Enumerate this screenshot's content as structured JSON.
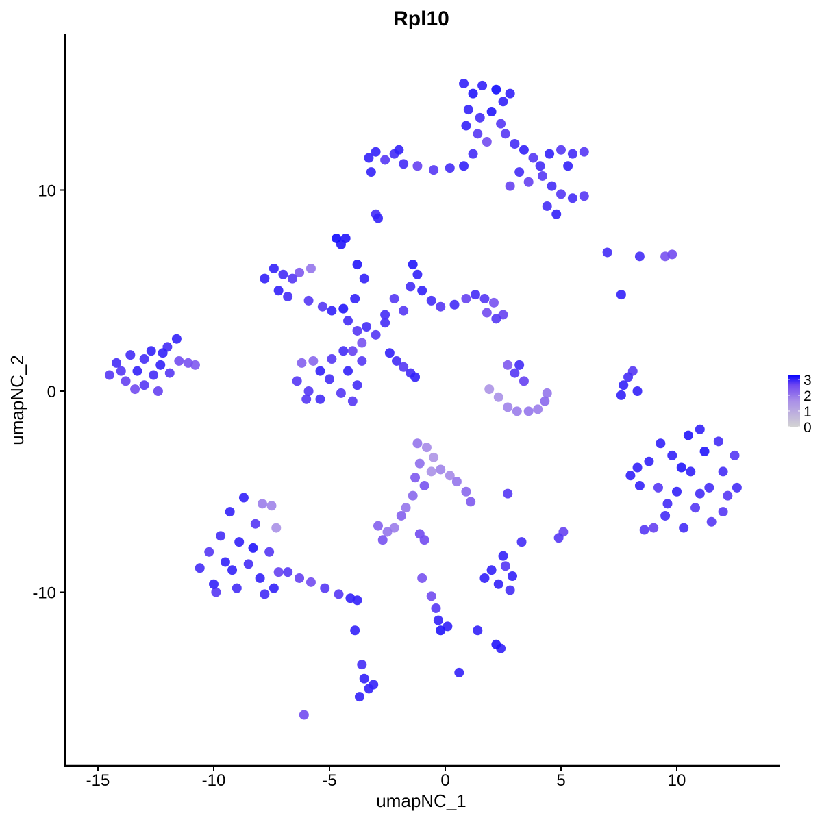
{
  "chart_data": {
    "type": "scatter",
    "title": "Rpl10",
    "xlabel": "umapNC_1",
    "ylabel": "umapNC_2",
    "xlim": [
      -16.4,
      14.4
    ],
    "ylim": [
      -18.6,
      17.8
    ],
    "x_ticks": [
      -15,
      -10,
      -5,
      0,
      5,
      10
    ],
    "y_ticks": [
      -10,
      0,
      10
    ],
    "grid": false,
    "color_scale": {
      "low": "#d3d3d3",
      "high": "#0000ff",
      "min": 0,
      "max": 3.3,
      "ticks": [
        3,
        2,
        1,
        0
      ]
    },
    "legend_position": "right",
    "points_format": [
      "x",
      "y",
      "expression"
    ],
    "points": [
      [
        -14.5,
        0.8,
        2.8
      ],
      [
        -14.2,
        1.4,
        2.9
      ],
      [
        -13.8,
        0.5,
        2.7
      ],
      [
        -13.6,
        1.8,
        2.9
      ],
      [
        -13.3,
        1.0,
        3
      ],
      [
        -13.0,
        0.3,
        2.8
      ],
      [
        -13.0,
        1.6,
        2.9
      ],
      [
        -12.7,
        2.0,
        3
      ],
      [
        -12.6,
        0.8,
        2.9
      ],
      [
        -12.4,
        0.0,
        2.7
      ],
      [
        -12.3,
        1.3,
        3
      ],
      [
        -12.0,
        2.2,
        2.9
      ],
      [
        -11.9,
        0.9,
        2.8
      ],
      [
        -11.6,
        2.6,
        3
      ],
      [
        -11.5,
        1.5,
        2.6
      ],
      [
        -11.1,
        1.4,
        2.5
      ],
      [
        -10.8,
        1.3,
        2.4
      ],
      [
        -14.0,
        1.0,
        2.8
      ],
      [
        -13.4,
        0.1,
        2.6
      ],
      [
        -12.2,
        1.9,
        3
      ],
      [
        -3.3,
        11.6,
        3
      ],
      [
        -3.0,
        11.9,
        3
      ],
      [
        -2.6,
        11.5,
        2.8
      ],
      [
        -2.2,
        11.8,
        2.9
      ],
      [
        -1.8,
        11.3,
        2.9
      ],
      [
        -1.2,
        11.2,
        2.7
      ],
      [
        -0.5,
        11.0,
        2.8
      ],
      [
        0.2,
        11.1,
        2.9
      ],
      [
        0.8,
        11.2,
        3
      ],
      [
        -3.2,
        10.9,
        3
      ],
      [
        -2.0,
        12.0,
        3
      ],
      [
        0.8,
        15.3,
        3
      ],
      [
        1.2,
        14.8,
        3.1
      ],
      [
        1.6,
        15.2,
        3
      ],
      [
        2.2,
        15.0,
        3.2
      ],
      [
        2.5,
        14.4,
        3
      ],
      [
        1.0,
        14.0,
        3
      ],
      [
        1.5,
        13.6,
        2.9
      ],
      [
        2.0,
        13.9,
        3.1
      ],
      [
        2.4,
        13.3,
        2.8
      ],
      [
        0.9,
        13.2,
        3
      ],
      [
        1.4,
        12.8,
        2.8
      ],
      [
        2.8,
        14.8,
        3
      ],
      [
        1.8,
        12.4,
        2.6
      ],
      [
        1.2,
        11.8,
        2.9
      ],
      [
        2.6,
        12.8,
        2.8
      ],
      [
        3.0,
        12.3,
        2.9
      ],
      [
        3.4,
        12.0,
        3
      ],
      [
        3.8,
        11.6,
        2.8
      ],
      [
        4.1,
        11.2,
        2.9
      ],
      [
        4.5,
        11.8,
        3
      ],
      [
        5.0,
        12.0,
        2.8
      ],
      [
        5.5,
        11.8,
        2.9
      ],
      [
        6.0,
        11.9,
        2.8
      ],
      [
        5.3,
        11.2,
        3
      ],
      [
        4.2,
        10.7,
        2.8
      ],
      [
        4.6,
        10.2,
        2.9
      ],
      [
        5.0,
        9.8,
        2.8
      ],
      [
        5.5,
        9.6,
        2.9
      ],
      [
        6.0,
        9.7,
        2.8
      ],
      [
        4.8,
        8.8,
        3
      ],
      [
        4.4,
        9.2,
        2.9
      ],
      [
        3.6,
        10.4,
        2.7
      ],
      [
        2.8,
        10.2,
        2.7
      ],
      [
        3.2,
        10.9,
        2.9
      ],
      [
        -3.0,
        8.8,
        2.9
      ],
      [
        -2.9,
        8.6,
        3
      ],
      [
        -7.8,
        5.6,
        3
      ],
      [
        -7.4,
        6.1,
        3
      ],
      [
        -7.0,
        5.8,
        2.9
      ],
      [
        -6.6,
        5.6,
        2.8
      ],
      [
        -7.2,
        5.0,
        3
      ],
      [
        -6.8,
        4.7,
        2.9
      ],
      [
        -6.3,
        5.9,
        2.4
      ],
      [
        -5.8,
        6.1,
        2
      ],
      [
        -5.9,
        4.5,
        2.8
      ],
      [
        -5.3,
        4.2,
        2.8
      ],
      [
        -4.9,
        4.0,
        3
      ],
      [
        -4.4,
        4.1,
        3.1
      ],
      [
        -4.2,
        3.5,
        2.9
      ],
      [
        -3.8,
        3.0,
        2.8
      ],
      [
        -3.4,
        3.2,
        2.9
      ],
      [
        -3.0,
        2.8,
        2.8
      ],
      [
        -3.6,
        2.4,
        2.5
      ],
      [
        -4.0,
        2.0,
        2.7
      ],
      [
        -2.6,
        3.4,
        2.9
      ],
      [
        -3.9,
        4.6,
        3
      ],
      [
        -3.5,
        5.6,
        3
      ],
      [
        -3.8,
        6.3,
        3.1
      ],
      [
        -4.7,
        7.6,
        3.2
      ],
      [
        -4.5,
        7.3,
        3.1
      ],
      [
        -4.3,
        7.6,
        3.1
      ],
      [
        -6.4,
        0.5,
        2.8
      ],
      [
        -6.2,
        1.4,
        2.3
      ],
      [
        -5.7,
        1.5,
        2.2
      ],
      [
        -5.9,
        0.0,
        2.8
      ],
      [
        -5.4,
        -0.4,
        2.9
      ],
      [
        -5.0,
        0.6,
        2.9
      ],
      [
        -4.9,
        1.6,
        2.8
      ],
      [
        -4.5,
        -0.1,
        2.8
      ],
      [
        -4.2,
        1.0,
        3
      ],
      [
        -4.4,
        2.0,
        2.9
      ],
      [
        -3.8,
        0.3,
        2.9
      ],
      [
        -3.6,
        1.5,
        2.8
      ],
      [
        -4.0,
        -0.5,
        2.8
      ],
      [
        -5.4,
        1.0,
        3
      ],
      [
        -6.0,
        -0.4,
        2.8
      ],
      [
        -2.4,
        1.9,
        3
      ],
      [
        -2.1,
        1.5,
        2.9
      ],
      [
        -1.8,
        1.2,
        2.8
      ],
      [
        -1.5,
        0.9,
        2.9
      ],
      [
        -1.3,
        0.7,
        3
      ],
      [
        -1.4,
        6.3,
        3.1
      ],
      [
        -1.2,
        5.8,
        3
      ],
      [
        -1.5,
        5.2,
        2.9
      ],
      [
        -1.0,
        5.0,
        3
      ],
      [
        -0.6,
        4.5,
        2.9
      ],
      [
        -1.8,
        4.0,
        2.8
      ],
      [
        -0.2,
        4.2,
        2.8
      ],
      [
        0.4,
        4.3,
        2.9
      ],
      [
        0.9,
        4.6,
        2.7
      ],
      [
        1.3,
        4.8,
        2.9
      ],
      [
        1.7,
        4.6,
        2.8
      ],
      [
        2.1,
        4.4,
        2.5
      ],
      [
        2.5,
        3.8,
        2.7
      ],
      [
        2.2,
        3.6,
        2.8
      ],
      [
        1.8,
        3.9,
        2.6
      ],
      [
        -2.2,
        4.6,
        2.8
      ],
      [
        -2.6,
        3.8,
        2.9
      ],
      [
        1.9,
        0.1,
        1.5
      ],
      [
        2.3,
        -0.3,
        1.6
      ],
      [
        2.7,
        -0.8,
        1.8
      ],
      [
        3.1,
        -1.0,
        1.9
      ],
      [
        3.6,
        -1.0,
        2.0
      ],
      [
        4.0,
        -0.9,
        1.9
      ],
      [
        4.3,
        -0.5,
        2.2
      ],
      [
        4.4,
        -0.1,
        2.0
      ],
      [
        3.0,
        0.9,
        2.8
      ],
      [
        3.2,
        1.3,
        2.9
      ],
      [
        2.7,
        1.3,
        2.4
      ],
      [
        3.4,
        0.5,
        2.7
      ],
      [
        7.6,
        -0.2,
        3
      ],
      [
        7.7,
        0.3,
        3
      ],
      [
        7.9,
        0.7,
        2.9
      ],
      [
        8.1,
        1.0,
        2.8
      ],
      [
        8.3,
        0.0,
        3
      ],
      [
        8.0,
        -4.2,
        3
      ],
      [
        8.4,
        -4.7,
        3
      ],
      [
        8.8,
        -3.5,
        3
      ],
      [
        9.2,
        -4.8,
        2.8
      ],
      [
        9.5,
        -6.2,
        2.9
      ],
      [
        9.0,
        -6.8,
        2.7
      ],
      [
        9.8,
        -3.2,
        3
      ],
      [
        10.0,
        -5.0,
        3
      ],
      [
        10.3,
        -6.8,
        2.9
      ],
      [
        10.5,
        -2.2,
        3.1
      ],
      [
        10.6,
        -4.0,
        3
      ],
      [
        10.8,
        -5.8,
        2.8
      ],
      [
        11.0,
        -1.9,
        3
      ],
      [
        11.2,
        -3.0,
        3.1
      ],
      [
        11.4,
        -4.8,
        2.9
      ],
      [
        11.5,
        -6.5,
        2.8
      ],
      [
        11.8,
        -2.5,
        2.9
      ],
      [
        12.0,
        -4.0,
        2.9
      ],
      [
        12.2,
        -5.2,
        2.8
      ],
      [
        12.5,
        -3.2,
        2.8
      ],
      [
        12.6,
        -4.8,
        2.9
      ],
      [
        9.3,
        -2.6,
        3
      ],
      [
        10.2,
        -3.8,
        3.1
      ],
      [
        9.6,
        -5.6,
        2.9
      ],
      [
        11.0,
        -5.1,
        2.9
      ],
      [
        8.6,
        -6.9,
        2.8
      ],
      [
        12.0,
        -6.0,
        2.8
      ],
      [
        8.3,
        -3.8,
        3
      ],
      [
        -10.6,
        -8.8,
        2.9
      ],
      [
        -10.2,
        -8.0,
        2.8
      ],
      [
        -10.0,
        -9.6,
        3
      ],
      [
        -9.7,
        -7.2,
        2.9
      ],
      [
        -9.5,
        -8.5,
        3
      ],
      [
        -9.3,
        -6.0,
        3
      ],
      [
        -9.0,
        -9.8,
        2.9
      ],
      [
        -8.9,
        -7.5,
        3
      ],
      [
        -8.7,
        -5.3,
        3
      ],
      [
        -8.5,
        -8.6,
        2.9
      ],
      [
        -8.2,
        -6.6,
        2.8
      ],
      [
        -8.0,
        -9.3,
        3
      ],
      [
        -7.8,
        -10.1,
        2.9
      ],
      [
        -7.6,
        -8.0,
        2.8
      ],
      [
        -7.9,
        -5.6,
        1.9
      ],
      [
        -7.5,
        -5.7,
        1.8
      ],
      [
        -7.3,
        -6.8,
        1.6
      ],
      [
        -7.2,
        -9.0,
        2.7
      ],
      [
        -7.4,
        -9.8,
        3
      ],
      [
        -9.9,
        -10.0,
        2.8
      ],
      [
        -8.3,
        -7.8,
        3.1
      ],
      [
        -9.2,
        -8.9,
        3
      ],
      [
        -6.8,
        -9.0,
        2.8
      ],
      [
        -6.3,
        -9.3,
        2.7
      ],
      [
        -5.8,
        -9.5,
        2.6
      ],
      [
        -5.2,
        -9.8,
        2.8
      ],
      [
        -4.6,
        -10.1,
        2.8
      ],
      [
        -4.1,
        -10.3,
        3
      ],
      [
        -3.8,
        -10.4,
        3
      ],
      [
        -1.2,
        -2.6,
        2.0
      ],
      [
        -0.8,
        -2.8,
        1.7
      ],
      [
        -0.5,
        -3.3,
        1.5
      ],
      [
        -1.1,
        -3.6,
        2.1
      ],
      [
        -0.6,
        -4.0,
        1.6
      ],
      [
        -1.3,
        -4.3,
        2.4
      ],
      [
        -0.2,
        -3.9,
        1.8
      ],
      [
        0.2,
        -4.2,
        1.7
      ],
      [
        0.5,
        -4.5,
        2.0
      ],
      [
        -0.9,
        -4.7,
        2.5
      ],
      [
        0.9,
        -5.0,
        2.2
      ],
      [
        1.1,
        -5.5,
        2.4
      ],
      [
        -1.4,
        -5.2,
        2.2
      ],
      [
        -1.7,
        -5.8,
        2.0
      ],
      [
        -1.9,
        -6.2,
        2.3
      ],
      [
        -2.9,
        -6.7,
        2.3
      ],
      [
        -2.5,
        -7.0,
        2.0
      ],
      [
        -2.2,
        -6.8,
        1.9
      ],
      [
        -2.7,
        -7.4,
        2.5
      ],
      [
        -1.1,
        -7.1,
        2.6
      ],
      [
        -0.9,
        -7.4,
        2.6
      ],
      [
        1.7,
        -9.3,
        3
      ],
      [
        2.0,
        -8.9,
        3
      ],
      [
        2.3,
        -9.6,
        3
      ],
      [
        2.6,
        -8.7,
        2.8
      ],
      [
        2.9,
        -9.2,
        3
      ],
      [
        2.5,
        -8.2,
        3
      ],
      [
        2.8,
        -9.9,
        2.9
      ],
      [
        2.7,
        -5.1,
        2.8
      ],
      [
        -0.6,
        -10.2,
        2.6
      ],
      [
        -0.4,
        -10.8,
        2.8
      ],
      [
        -0.3,
        -11.4,
        3
      ],
      [
        -0.2,
        -11.9,
        3.1
      ],
      [
        0.1,
        -11.7,
        3
      ],
      [
        -1.0,
        -9.3,
        2.5
      ],
      [
        -3.6,
        -13.6,
        2.9
      ],
      [
        -3.5,
        -14.3,
        3
      ],
      [
        -3.3,
        -14.8,
        3
      ],
      [
        -3.7,
        -15.2,
        3
      ],
      [
        -3.1,
        -14.6,
        3
      ],
      [
        4.9,
        -7.3,
        2.8
      ],
      [
        5.1,
        -7.0,
        2.7
      ],
      [
        3.3,
        -7.5,
        2.9
      ],
      [
        1.4,
        -11.9,
        3
      ],
      [
        2.2,
        -12.6,
        3.1
      ],
      [
        2.4,
        -12.8,
        3
      ],
      [
        0.6,
        -14.0,
        3
      ],
      [
        -6.1,
        -16.1,
        2.6
      ],
      [
        7.0,
        6.9,
        2.9
      ],
      [
        9.8,
        6.8,
        2.6
      ],
      [
        9.5,
        6.7,
        2.5
      ],
      [
        7.6,
        4.8,
        3
      ],
      [
        8.4,
        6.7,
        2.9
      ],
      [
        -3.9,
        -11.9,
        3
      ]
    ]
  }
}
